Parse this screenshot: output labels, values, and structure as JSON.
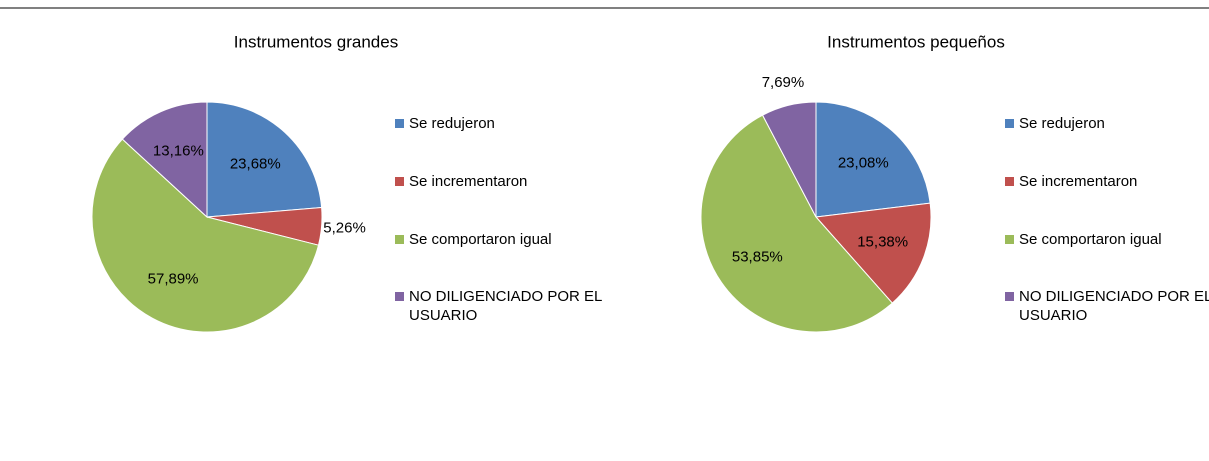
{
  "chart_data": [
    {
      "type": "pie",
      "title": "Instrumentos grandes",
      "categories": [
        "Se redujeron",
        "Se incrementaron",
        "Se comportaron igual",
        "NO DILIGENCIADO POR EL USUARIO"
      ],
      "values": [
        23.68,
        5.26,
        57.89,
        13.16
      ],
      "value_labels": [
        "23,68%",
        "5,26%",
        "57,89%",
        "13,16%"
      ],
      "colors": [
        "#4f81bd",
        "#c0504d",
        "#9bbb59",
        "#8064a2"
      ]
    },
    {
      "type": "pie",
      "title": "Instrumentos pequeños",
      "categories": [
        "Se redujeron",
        "Se incrementaron",
        "Se comportaron igual",
        "NO DILIGENCIADO POR EL USUARIO"
      ],
      "values": [
        23.08,
        15.38,
        53.85,
        7.69
      ],
      "value_labels": [
        "23,08%",
        "15,38%",
        "53,85%",
        "7,69%"
      ],
      "colors": [
        "#4f81bd",
        "#c0504d",
        "#9bbb59",
        "#8064a2"
      ]
    }
  ]
}
